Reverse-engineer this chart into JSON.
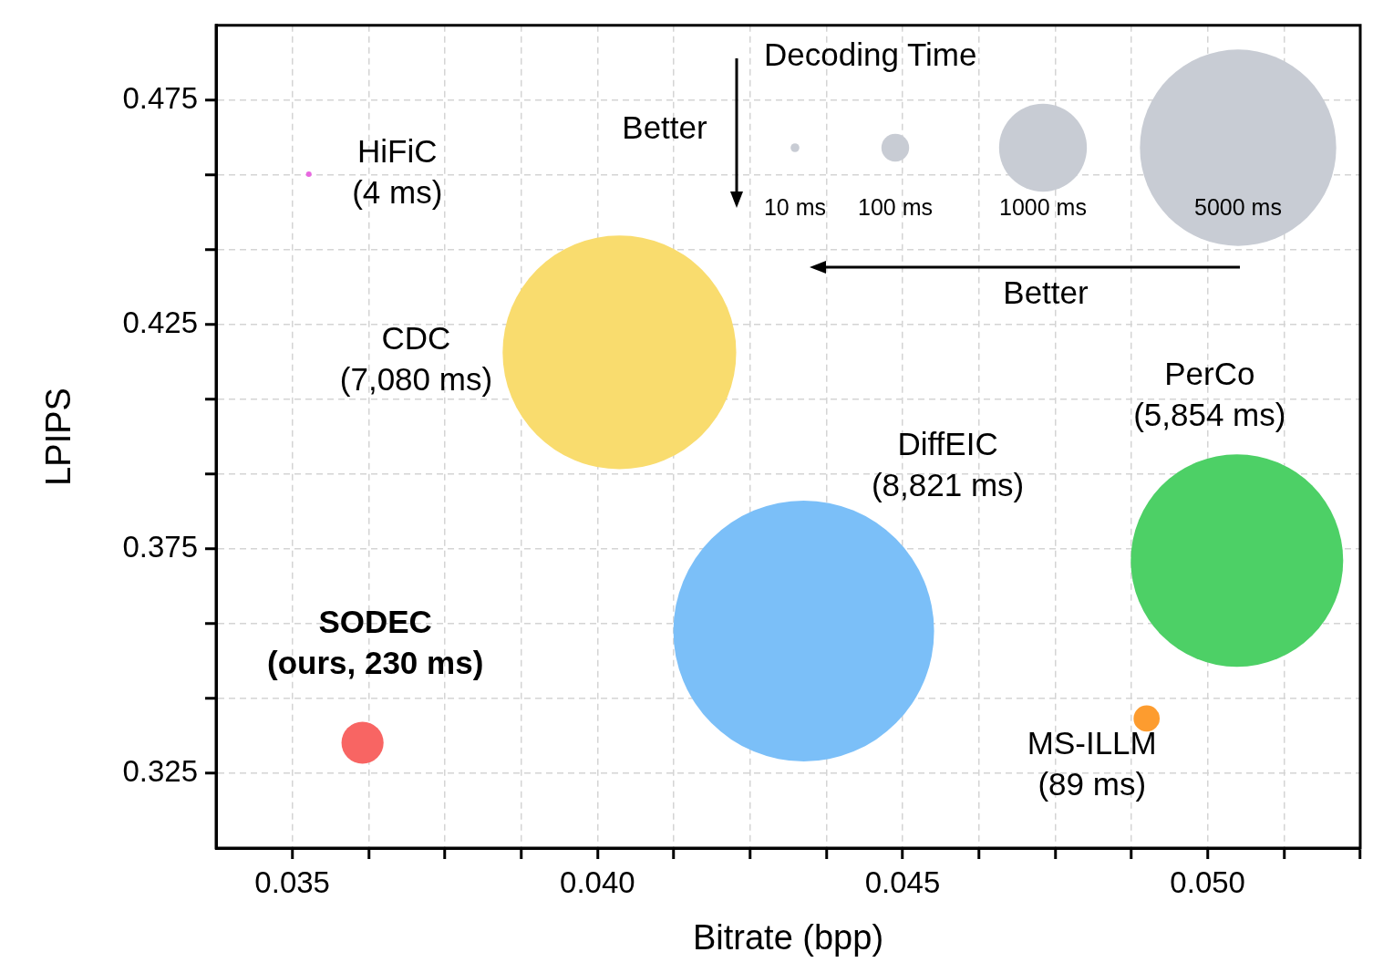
{
  "chart_data": {
    "type": "bubble",
    "xlabel": "Bitrate (bpp)",
    "ylabel": "LPIPS",
    "legend_title": "Decoding Time",
    "xlim": [
      0.03375,
      0.0525
    ],
    "xticks": [
      0.035,
      {
        "value": 0.03625,
        "label": null
      },
      {
        "value": 0.0375,
        "label": null
      },
      {
        "value": 0.03875,
        "label": null
      },
      {
        "value": 0.04,
        "label": "0.040"
      },
      {
        "value": 0.04125,
        "label": null
      },
      {
        "value": 0.0425,
        "label": null
      },
      {
        "value": 0.04375,
        "label": null
      },
      0.045,
      {
        "value": 0.04625,
        "label": null
      },
      {
        "value": 0.0475,
        "label": null
      },
      {
        "value": 0.04875,
        "label": null
      },
      {
        "value": 0.05,
        "label": "0.050"
      },
      {
        "value": 0.05125,
        "label": null
      },
      {
        "value": 0.0525,
        "label": null
      }
    ],
    "ylim": [
      0.308333,
      0.491667
    ],
    "yticks": [
      0.325,
      {
        "value": 0.341667,
        "label": null
      },
      {
        "value": 0.358333,
        "label": null
      },
      0.375,
      {
        "value": 0.391667,
        "label": null
      },
      {
        "value": 0.408333,
        "label": null
      },
      0.425,
      {
        "value": 0.441667,
        "label": null
      },
      {
        "value": 0.458333,
        "label": null
      },
      0.475
    ],
    "grid": true,
    "size_legend": [
      {
        "value": 10,
        "label": "10 ms"
      },
      {
        "value": 100,
        "label": "100 ms"
      },
      {
        "value": 1000,
        "label": "1000 ms"
      },
      {
        "value": 5000,
        "label": "5000 ms"
      }
    ],
    "series": [
      {
        "name": "HiFiC",
        "color": "#e868e0",
        "x": [
          0.03527
        ],
        "values": [
          0.4585
        ],
        "sizes": [
          4
        ],
        "value_labels": [
          "(4 ms)"
        ]
      },
      {
        "name": "CDC",
        "color": "#f9dc6e",
        "x": [
          0.04036
        ],
        "values": [
          0.4188
        ],
        "sizes": [
          7080
        ],
        "value_labels": [
          "(7,080 ms)"
        ]
      },
      {
        "name": "DiffEIC",
        "color": "#7bbff8",
        "x": [
          0.04338
        ],
        "values": [
          0.3567
        ],
        "sizes": [
          8821
        ],
        "value_labels": [
          "(8,821 ms)"
        ]
      },
      {
        "name": "PerCo",
        "color": "#4dd066",
        "x": [
          0.05048
        ],
        "values": [
          0.3724
        ],
        "sizes": [
          5854
        ],
        "value_labels": [
          "(5,854 ms)"
        ]
      },
      {
        "name": "MS-ILLM",
        "color": "#fd9c2f",
        "x": [
          0.049
        ],
        "values": [
          0.3372
        ],
        "sizes": [
          89
        ],
        "value_labels": [
          "(89 ms)"
        ]
      },
      {
        "name": "SODEC",
        "color": "#f86563",
        "x": [
          0.03615
        ],
        "values": [
          0.3318
        ],
        "sizes": [
          230
        ],
        "value_labels": [
          "(ours, 230 ms)"
        ]
      }
    ],
    "annotations": [
      "Better",
      "Better"
    ]
  }
}
